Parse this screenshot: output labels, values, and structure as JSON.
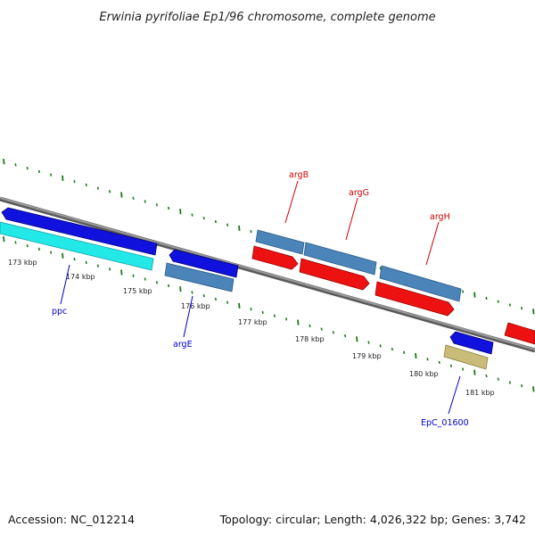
{
  "map": {
    "title": "Erwinia pyrifoliae Ep1/96 chromosome, complete genome",
    "accession": "Accession: NC_012214",
    "summary": "Topology: circular; Length: 4,026,322 bp; Genes: 3,742"
  },
  "ticks": [
    {
      "kb": 173,
      "label": "173 kbp"
    },
    {
      "kb": 174,
      "label": "174 kbp"
    },
    {
      "kb": 175,
      "label": "175 kbp"
    },
    {
      "kb": 176,
      "label": "176 kbp"
    },
    {
      "kb": 177,
      "label": "177 kbp"
    },
    {
      "kb": 178,
      "label": "178 kbp"
    },
    {
      "kb": 179,
      "label": "179 kbp"
    },
    {
      "kb": 180,
      "label": "180 kbp"
    },
    {
      "kb": 181,
      "label": "181 kbp"
    }
  ],
  "gene_labels": {
    "ppc": "ppc",
    "argE": "argE",
    "argB": "argB",
    "argG": "argG",
    "argH": "argH",
    "epc01600": "EpC_01600"
  },
  "colors": {
    "backbone": "#808080",
    "tick": "#1a7a1a",
    "cds_blue": "#1111dd",
    "cds_cyan": "#22e8e8",
    "gene_steel": "#4a84b8",
    "cds_red": "#ee1111",
    "gene_khaki": "#c8bc78",
    "label_blue": "#0000cc",
    "label_red": "#cc0000"
  },
  "icons": [
    "forward-arrow-feature",
    "reverse-arrow-feature"
  ]
}
